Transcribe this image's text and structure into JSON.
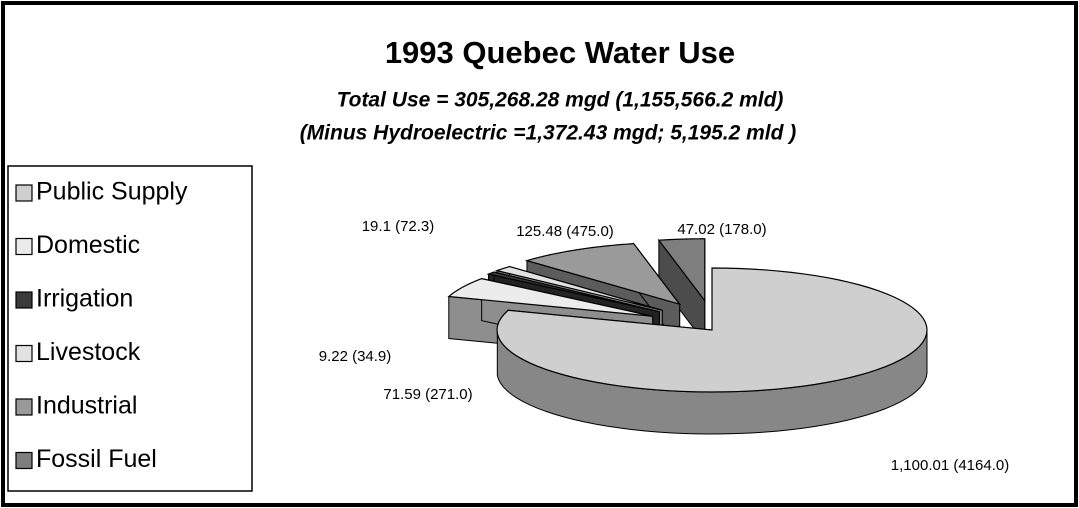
{
  "chart_data": {
    "type": "pie",
    "title": "1993 Quebec Water Use",
    "subtitle": [
      "Total Use = 305,268.28 mgd (1,155,566.2 mld)",
      "(Minus Hydroelectric =1,372.43 mgd; 5,195.2 mld )"
    ],
    "categories": [
      "Public Supply",
      "Domestic",
      "Irrigation",
      "Livestock",
      "Industrial",
      "Fossil Fuel"
    ],
    "values": [
      1100.01,
      71.59,
      9.22,
      19.1,
      125.48,
      47.02
    ],
    "value_labels": [
      "1,100.01 (4164.0)",
      "71.59 (271.0)",
      "9.22 (34.9)",
      "19.1 (72.3)",
      "125.48 (475.0)",
      "47.02 (178.0)"
    ],
    "colors": [
      "#cfcfcf",
      "#ececec",
      "#3a3a3a",
      "#e2e2e2",
      "#9a9a9a",
      "#7e7e7e"
    ],
    "legend": "left"
  }
}
